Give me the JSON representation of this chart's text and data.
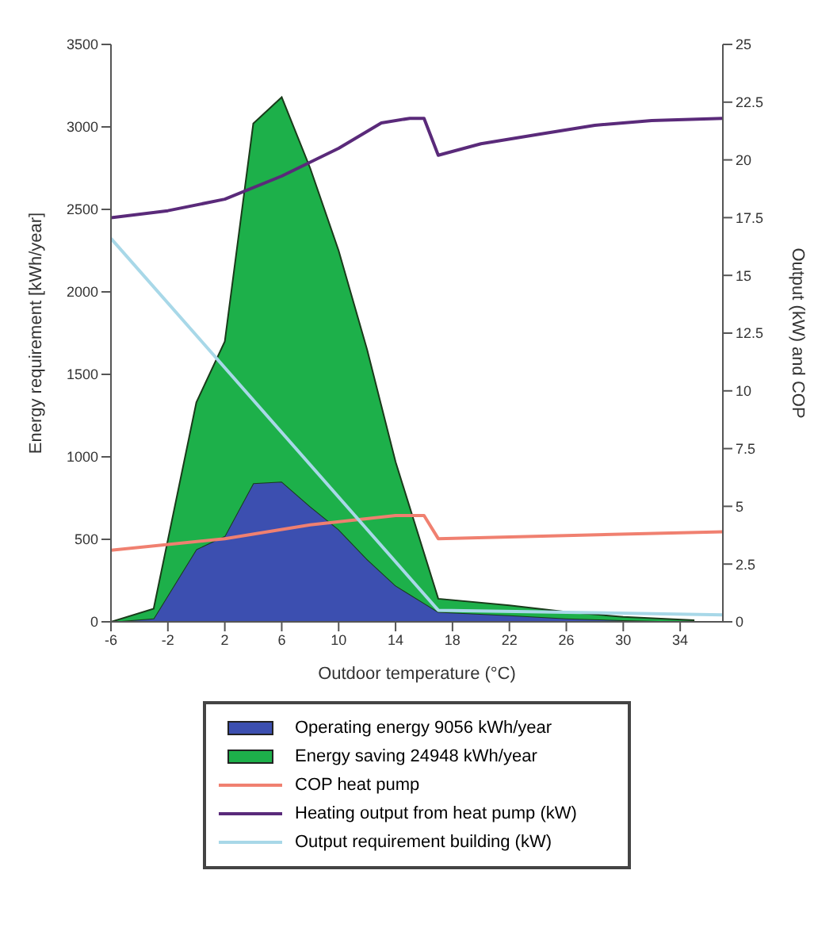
{
  "chart_data": {
    "type": "area",
    "stacked": true,
    "xlabel": "Outdoor temperature (°C)",
    "ylabel": "Energy requirement [kWh/year]",
    "y2label": "Output (kW) and COP",
    "x": [
      -6,
      -3,
      0,
      2,
      4,
      6,
      8,
      10,
      12,
      14,
      17,
      22,
      26,
      30,
      35
    ],
    "xlim": [
      -6,
      37
    ],
    "xticks": [
      -6,
      -2,
      2,
      6,
      10,
      14,
      18,
      22,
      26,
      30,
      34
    ],
    "ylim": [
      0,
      3500
    ],
    "yticks": [
      0,
      500,
      1000,
      1500,
      2000,
      2500,
      3000,
      3500
    ],
    "y2lim": [
      0,
      25
    ],
    "y2ticks": [
      0,
      2.5,
      5,
      7.5,
      10,
      12.5,
      15,
      17.5,
      20,
      22.5,
      25
    ],
    "legend": "bottom",
    "marker": "none",
    "series": [
      {
        "name": "Operating energy  9056 kWh/year",
        "color": "#3c4fb0",
        "values": [
          0,
          20,
          440,
          520,
          840,
          850,
          700,
          560,
          380,
          220,
          60,
          40,
          20,
          10,
          0
        ]
      },
      {
        "name": "Energy saving  24948 kWh/year",
        "color": "#1db04a",
        "values": [
          0,
          60,
          890,
          1180,
          2180,
          2330,
          2050,
          1690,
          1270,
          750,
          80,
          60,
          40,
          20,
          10
        ]
      },
      {
        "name": "COP heat pump",
        "type": "line",
        "axis": "y2",
        "color": "#f08070",
        "x": [
          -6,
          2,
          8,
          14,
          16,
          17,
          37
        ],
        "values": [
          3.1,
          3.6,
          4.2,
          4.6,
          4.6,
          3.6,
          3.9
        ]
      },
      {
        "name": "Heating output from heat pump (kW)",
        "type": "line",
        "axis": "y2",
        "color": "#5a2a7a",
        "x": [
          -6,
          -2,
          2,
          6,
          10,
          13,
          15,
          16,
          17,
          20,
          24,
          28,
          32,
          37
        ],
        "values": [
          17.5,
          17.8,
          18.3,
          19.3,
          20.5,
          21.6,
          21.8,
          21.8,
          20.2,
          20.7,
          21.1,
          21.5,
          21.7,
          21.8
        ]
      },
      {
        "name": "Output requirement building (kW)",
        "type": "line",
        "axis": "y2",
        "color": "#a8d8e8",
        "x": [
          -6,
          17,
          37
        ],
        "values": [
          16.6,
          0.5,
          0.3
        ]
      }
    ]
  }
}
